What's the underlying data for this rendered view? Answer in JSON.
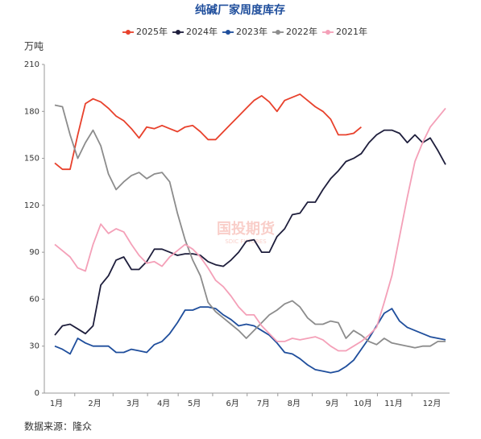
{
  "chart_data": {
    "type": "line",
    "title": "纯碱厂家周度库存",
    "y_label": "万吨",
    "source": "数据来源：隆众",
    "watermark": "国投期货",
    "watermark_sub": "SDIC FUTURES",
    "categories": [
      "1月",
      null,
      null,
      null,
      null,
      "2月",
      null,
      null,
      null,
      null,
      "3月",
      null,
      null,
      null,
      "4月",
      null,
      null,
      null,
      "5月",
      null,
      null,
      null,
      null,
      "6月",
      null,
      null,
      null,
      "7月",
      null,
      null,
      null,
      "8月",
      null,
      null,
      null,
      null,
      "9月",
      null,
      null,
      null,
      "10月",
      null,
      null,
      null,
      "11月",
      null,
      null,
      null,
      null,
      "12月",
      null,
      null
    ],
    "ylim": [
      0,
      210
    ],
    "yticks": [
      0,
      30,
      60,
      90,
      120,
      150,
      180,
      210
    ],
    "series": [
      {
        "name": "2025年",
        "color": "#e8412c",
        "values": [
          147,
          143,
          143,
          165,
          185,
          188,
          186,
          182,
          177,
          174,
          169,
          163,
          170,
          169,
          171,
          169,
          167,
          170,
          171,
          167,
          162,
          162,
          167,
          172,
          177,
          182,
          187,
          190,
          186,
          180,
          187,
          189,
          191,
          187,
          183,
          180,
          175,
          165,
          165,
          166,
          170,
          null,
          null,
          null,
          null,
          null,
          null,
          null,
          null,
          null,
          null,
          null
        ]
      },
      {
        "name": "2024年",
        "color": "#1e1e3c",
        "values": [
          37,
          43,
          44,
          41,
          38,
          43,
          69,
          75,
          85,
          87,
          79,
          79,
          84,
          92,
          92,
          90,
          88,
          89,
          89,
          88,
          84,
          82,
          81,
          85,
          90,
          97,
          98,
          90,
          90,
          100,
          105,
          114,
          115,
          122,
          122,
          130,
          137,
          142,
          148,
          150,
          153,
          160,
          165,
          168,
          168,
          166,
          160,
          165,
          160,
          163,
          155,
          146
        ]
      },
      {
        "name": "2023年",
        "color": "#1f4e9c",
        "values": [
          30,
          28,
          25,
          35,
          32,
          30,
          30,
          30,
          26,
          26,
          28,
          27,
          26,
          31,
          33,
          38,
          45,
          53,
          53,
          55,
          55,
          54,
          50,
          47,
          43,
          44,
          43,
          40,
          37,
          32,
          26,
          25,
          22,
          18,
          15,
          14,
          13,
          14,
          17,
          21,
          28,
          35,
          43,
          51,
          54,
          46,
          42,
          40,
          38,
          36,
          35,
          34
        ]
      },
      {
        "name": "2022年",
        "color": "#8c8c8c",
        "values": [
          184,
          183,
          165,
          150,
          160,
          168,
          158,
          140,
          130,
          135,
          139,
          141,
          137,
          140,
          141,
          135,
          115,
          98,
          85,
          75,
          58,
          52,
          48,
          44,
          40,
          35,
          40,
          45,
          50,
          53,
          57,
          59,
          55,
          48,
          44,
          44,
          46,
          45,
          35,
          40,
          37,
          33,
          31,
          35,
          32,
          31,
          30,
          29,
          30,
          30,
          33,
          33
        ]
      },
      {
        "name": "2021年",
        "color": "#f4a0b8",
        "values": [
          95,
          91,
          87,
          80,
          78,
          95,
          108,
          102,
          105,
          103,
          95,
          88,
          83,
          84,
          81,
          87,
          91,
          95,
          92,
          87,
          80,
          72,
          68,
          62,
          55,
          50,
          50,
          43,
          38,
          33,
          33,
          35,
          34,
          35,
          36,
          34,
          30,
          27,
          27,
          30,
          33,
          37,
          42,
          58,
          75,
          100,
          125,
          148,
          160,
          170,
          176,
          182
        ]
      }
    ]
  }
}
